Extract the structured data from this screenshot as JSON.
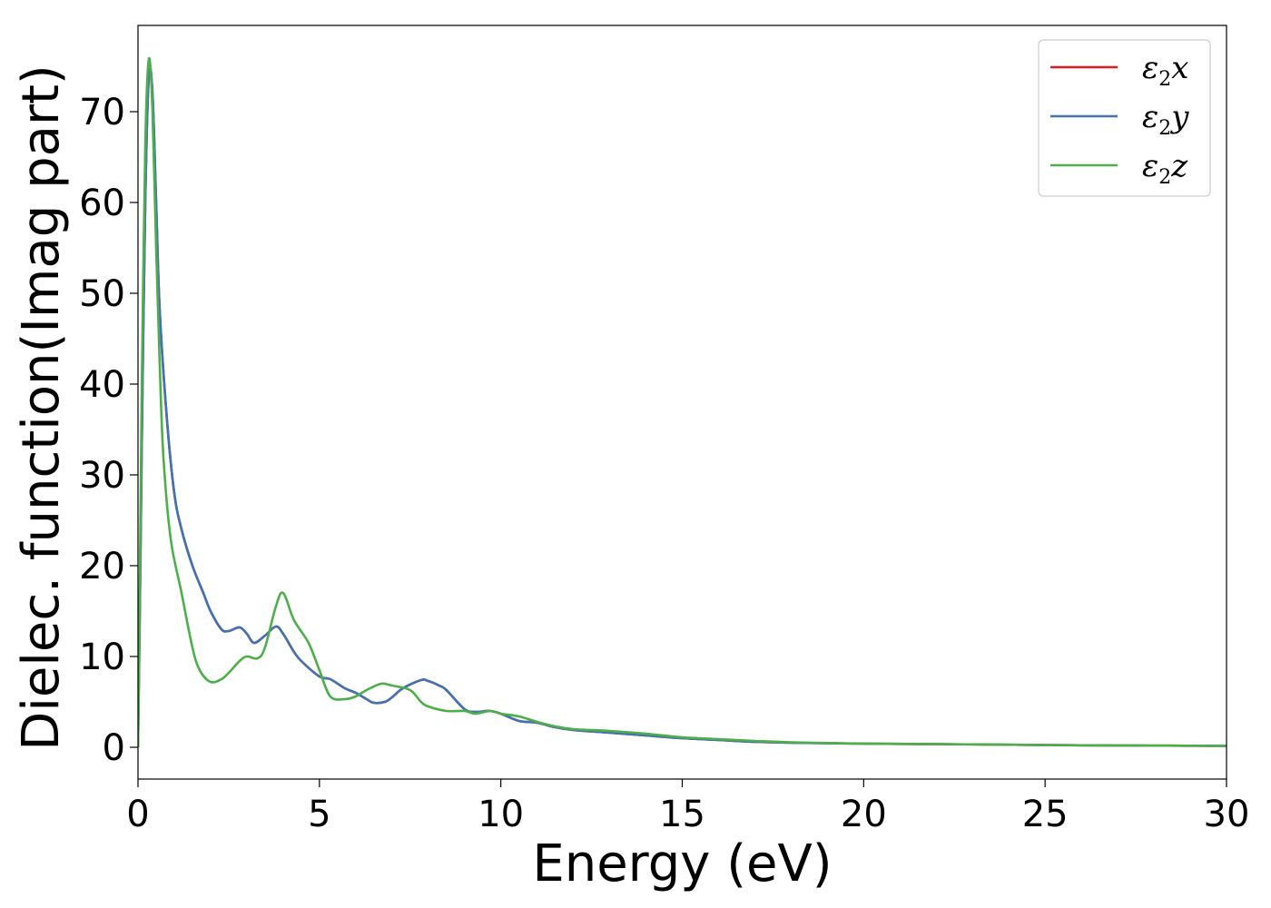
{
  "chart_data": {
    "type": "line",
    "xlabel": "Energy (eV)",
    "ylabel": "Dielec. function(Imag part)",
    "xlim": [
      0,
      30
    ],
    "ylim": [
      -3.5,
      79.5
    ],
    "xticks": [
      0,
      5,
      10,
      15,
      20,
      25,
      30
    ],
    "yticks": [
      0,
      10,
      20,
      30,
      40,
      50,
      60,
      70
    ],
    "grid": false,
    "legend_placement": "top-right",
    "series": [
      {
        "name": "ε2x",
        "legend_base": "ε",
        "legend_sub": "2",
        "legend_var": "x",
        "color": "#e41a1c",
        "x": [
          0,
          0.05,
          0.1,
          0.2,
          0.3,
          0.4,
          0.5,
          0.6,
          0.8,
          1.0,
          1.2,
          1.5,
          1.8,
          2.0,
          2.3,
          2.5,
          2.8,
          3.0,
          3.2,
          3.5,
          3.8,
          4.0,
          4.3,
          4.5,
          5.0,
          5.3,
          5.7,
          6.0,
          6.3,
          6.5,
          6.8,
          7.0,
          7.3,
          7.8,
          8.0,
          8.3,
          8.5,
          9.0,
          9.3,
          9.7,
          10.0,
          10.5,
          11.0,
          11.5,
          12.0,
          13.0,
          14.0,
          15.0,
          16.0,
          17.0,
          18.0,
          20.0,
          22.0,
          25.0,
          27.0,
          30.0
        ],
        "values": [
          0,
          15,
          32,
          60,
          74,
          72,
          60,
          48,
          36,
          28,
          24,
          20,
          17,
          15,
          13,
          12.8,
          13.2,
          12.5,
          11.5,
          12.3,
          13.3,
          12.5,
          10.5,
          9.5,
          7.8,
          7.5,
          6.5,
          6.0,
          5.3,
          4.9,
          5.0,
          5.5,
          6.5,
          7.4,
          7.3,
          6.8,
          6.3,
          4.2,
          3.9,
          4.0,
          3.7,
          2.9,
          2.7,
          2.2,
          1.9,
          1.6,
          1.3,
          1.0,
          0.8,
          0.6,
          0.5,
          0.4,
          0.35,
          0.25,
          0.2,
          0.15
        ]
      },
      {
        "name": "ε2y",
        "legend_base": "ε",
        "legend_sub": "2",
        "legend_var": "y",
        "color": "#3f74b4",
        "x": [
          0,
          0.05,
          0.1,
          0.2,
          0.3,
          0.4,
          0.5,
          0.6,
          0.8,
          1.0,
          1.2,
          1.5,
          1.8,
          2.0,
          2.3,
          2.5,
          2.8,
          3.0,
          3.2,
          3.5,
          3.8,
          4.0,
          4.3,
          4.5,
          5.0,
          5.3,
          5.7,
          6.0,
          6.3,
          6.5,
          6.8,
          7.0,
          7.3,
          7.8,
          8.0,
          8.3,
          8.5,
          9.0,
          9.3,
          9.7,
          10.0,
          10.5,
          11.0,
          11.5,
          12.0,
          13.0,
          14.0,
          15.0,
          16.0,
          17.0,
          18.0,
          20.0,
          22.0,
          25.0,
          27.0,
          30.0
        ],
        "values": [
          0,
          15,
          32,
          60,
          74,
          72,
          60,
          48,
          36,
          28,
          24,
          20,
          17,
          15,
          13,
          12.8,
          13.2,
          12.5,
          11.5,
          12.3,
          13.3,
          12.5,
          10.5,
          9.5,
          7.8,
          7.5,
          6.5,
          6.0,
          5.3,
          4.9,
          5.0,
          5.5,
          6.5,
          7.4,
          7.3,
          6.8,
          6.3,
          4.2,
          3.9,
          4.0,
          3.7,
          2.9,
          2.7,
          2.2,
          1.9,
          1.6,
          1.3,
          1.0,
          0.8,
          0.6,
          0.5,
          0.4,
          0.35,
          0.25,
          0.2,
          0.15
        ]
      },
      {
        "name": "ε2z",
        "legend_base": "ε",
        "legend_sub": "2",
        "legend_var": "z",
        "color": "#4daf4a",
        "x": [
          0,
          0.05,
          0.1,
          0.2,
          0.3,
          0.4,
          0.5,
          0.6,
          0.7,
          0.9,
          1.2,
          1.5,
          1.7,
          2.0,
          2.3,
          2.5,
          2.8,
          3.0,
          3.3,
          3.5,
          3.8,
          4.0,
          4.3,
          4.7,
          5.0,
          5.3,
          5.7,
          6.0,
          6.3,
          6.7,
          7.0,
          7.5,
          7.8,
          8.0,
          8.5,
          9.0,
          9.3,
          9.7,
          10.0,
          10.5,
          11.0,
          11.5,
          12.0,
          13.0,
          14.0,
          15.0,
          16.0,
          17.0,
          18.0,
          20.0,
          22.0,
          25.0,
          27.0,
          30.0
        ],
        "values": [
          0,
          18,
          38,
          66,
          75.8,
          70,
          55,
          42,
          32,
          23,
          17,
          11,
          8.5,
          7.2,
          7.5,
          8.2,
          9.5,
          10.0,
          9.8,
          11.0,
          15.5,
          17.0,
          14.0,
          11.5,
          8.5,
          5.6,
          5.3,
          5.6,
          6.3,
          7.0,
          6.8,
          6.3,
          5.0,
          4.5,
          4.0,
          4.0,
          3.7,
          4.0,
          3.7,
          3.4,
          2.8,
          2.3,
          2.0,
          1.8,
          1.5,
          1.1,
          0.9,
          0.7,
          0.55,
          0.4,
          0.35,
          0.25,
          0.2,
          0.15
        ]
      }
    ]
  }
}
